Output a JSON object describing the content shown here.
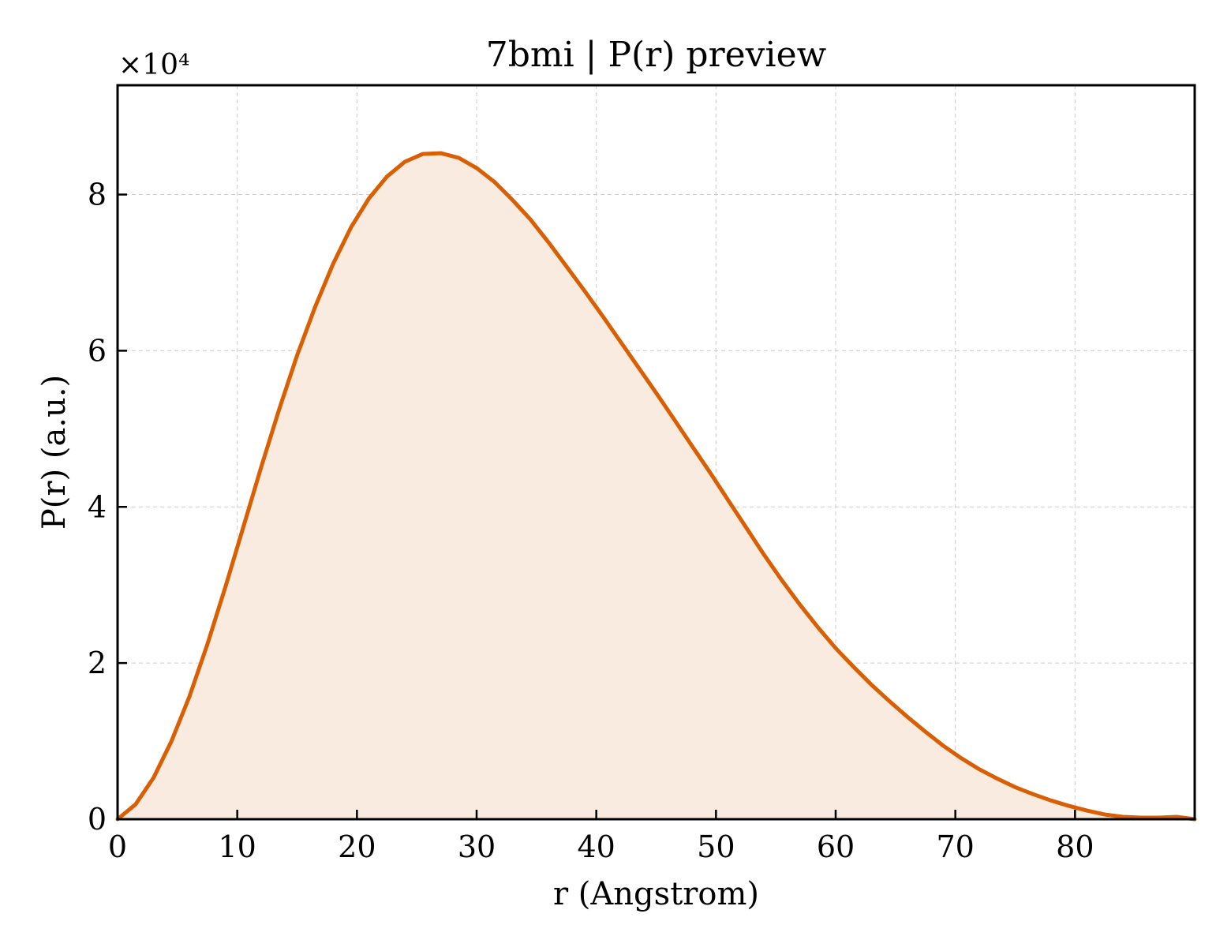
{
  "chart_data": {
    "type": "area",
    "title": "7bmi | P(r) preview",
    "xlabel": "r (Angstrom)",
    "ylabel": "P(r) (a.u.)",
    "y_multiplier_label": "×10⁴",
    "y_scale_factor": 10000,
    "xlim": [
      0,
      90
    ],
    "ylim": [
      0,
      9.4
    ],
    "x_ticks": [
      0,
      10,
      20,
      30,
      40,
      50,
      60,
      70,
      80
    ],
    "y_ticks": [
      0,
      2,
      4,
      6,
      8
    ],
    "grid": true,
    "line_color": "#d95f02",
    "fill_color": "#f9ebe0",
    "series": [
      {
        "x": [
          0,
          1.5,
          3,
          4.5,
          6,
          7.5,
          9,
          10.5,
          12,
          13.5,
          15,
          16.5,
          18,
          19.5,
          21,
          22.5,
          24,
          25.5,
          27,
          28.5,
          30,
          31.5,
          33,
          34.5,
          36,
          37.5,
          39,
          40.5,
          42,
          43.5,
          45,
          46.5,
          48,
          49.5,
          51,
          52.5,
          54,
          55.5,
          57,
          58.5,
          60,
          61.5,
          63,
          64.5,
          66,
          67.5,
          69,
          70.5,
          72,
          73.5,
          75,
          76.5,
          78,
          79.5,
          81,
          82.5,
          84,
          85.5,
          87,
          88.5,
          90
        ],
        "y": [
          0.0,
          0.19,
          0.53,
          1.0,
          1.57,
          2.24,
          2.97,
          3.74,
          4.51,
          5.25,
          5.94,
          6.56,
          7.11,
          7.58,
          7.95,
          8.23,
          8.42,
          8.52,
          8.53,
          8.47,
          8.34,
          8.16,
          7.93,
          7.68,
          7.39,
          7.08,
          6.77,
          6.45,
          6.12,
          5.79,
          5.46,
          5.12,
          4.78,
          4.44,
          4.09,
          3.74,
          3.39,
          3.06,
          2.75,
          2.46,
          2.19,
          1.95,
          1.72,
          1.51,
          1.31,
          1.12,
          0.94,
          0.78,
          0.64,
          0.52,
          0.41,
          0.32,
          0.24,
          0.17,
          0.11,
          0.06,
          0.03,
          0.02,
          0.02,
          0.03,
          0.0
        ]
      }
    ]
  }
}
